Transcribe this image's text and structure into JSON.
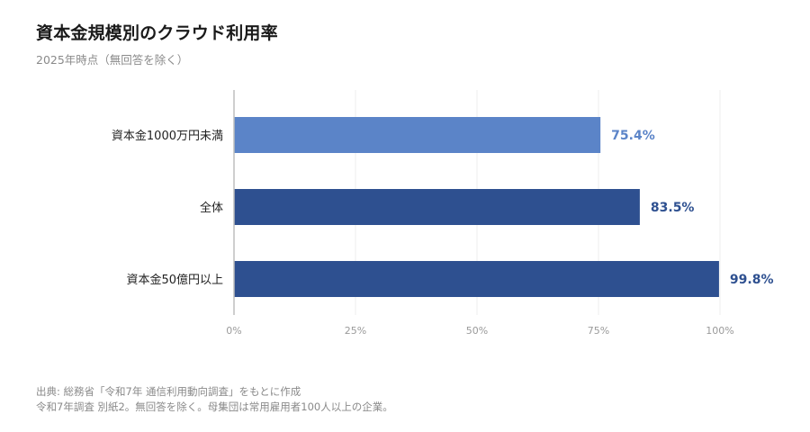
{
  "header": {
    "title": "資本金規模別のクラウド利用率",
    "subtitle": "2025年時点（無回答を除く）"
  },
  "source": {
    "line1": "出典: 総務省「令和7年 通信利用動向調査」をもとに作成",
    "line2": "令和7年調査 別紙2。無回答を除く。母集団は常用雇用者100人以上の企業。"
  },
  "chart_data": {
    "type": "bar",
    "orientation": "horizontal",
    "categories": [
      "資本金1000万円未満",
      "全体",
      "資本金50億円以上"
    ],
    "values": [
      75.4,
      83.5,
      99.8
    ],
    "value_labels": [
      "75.4%",
      "83.5%",
      "99.8%"
    ],
    "colors": [
      "#5b84c8",
      "#2e5090",
      "#2e5090"
    ],
    "xlim": [
      0,
      100
    ],
    "xticks": [
      0,
      25,
      50,
      75,
      100
    ],
    "xtick_labels": [
      "0%",
      "25%",
      "50%",
      "75%",
      "100%"
    ],
    "grid": "vertical",
    "legend": "none"
  }
}
